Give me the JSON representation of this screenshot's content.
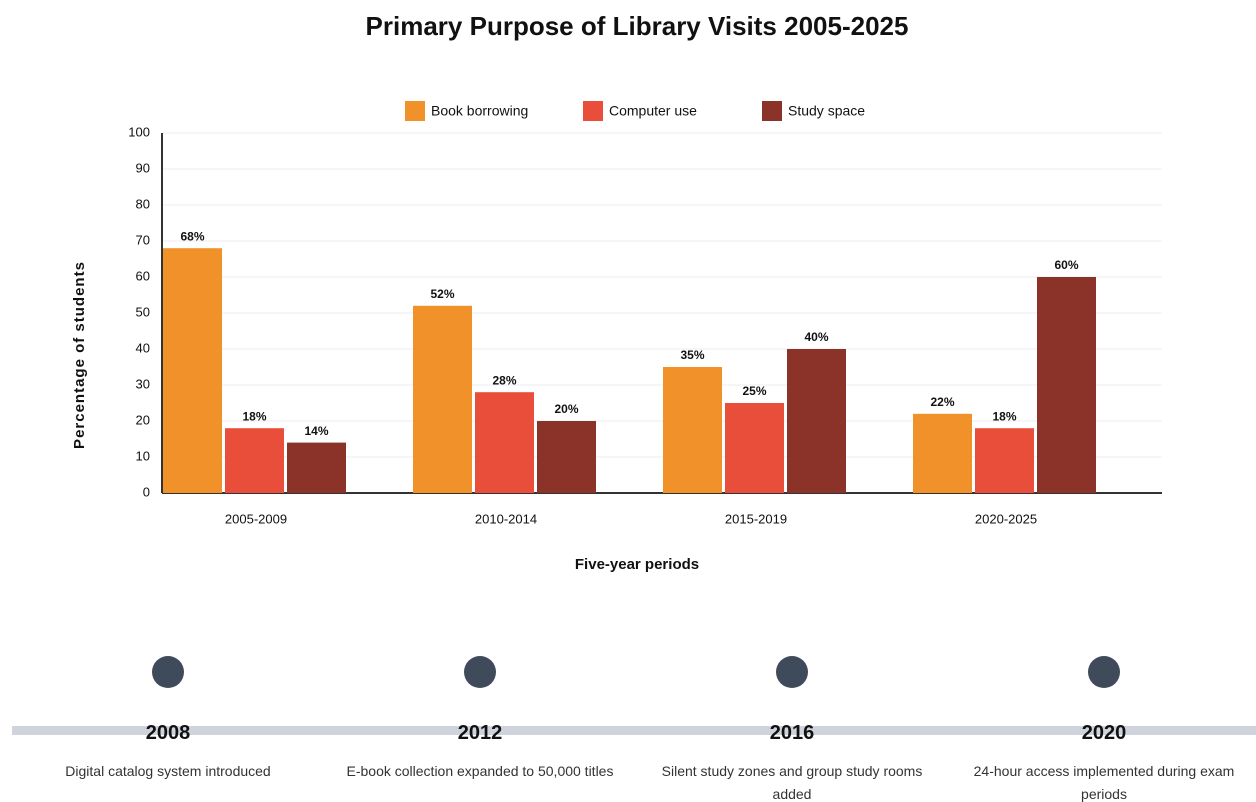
{
  "chart_data": {
    "type": "bar",
    "title": "Primary Purpose of Library Visits 2005-2025",
    "x_label": "Five-year periods",
    "y_label": "Percentage of students",
    "categories": [
      "2005-2009",
      "2010-2014",
      "2015-2019",
      "2020-2025"
    ],
    "series": [
      {
        "name": "Book borrowing",
        "color": "#f0912a",
        "values": [
          68,
          52,
          35,
          22
        ],
        "value_labels": [
          "68%",
          "52%",
          "35%",
          "22%"
        ]
      },
      {
        "name": "Computer use",
        "color": "#e84e3a",
        "values": [
          18,
          28,
          25,
          18
        ],
        "value_labels": [
          "18%",
          "28%",
          "25%",
          "18%"
        ]
      },
      {
        "name": "Study space",
        "color": "#8b3329",
        "values": [
          14,
          20,
          40,
          60
        ],
        "value_labels": [
          "14%",
          "20%",
          "40%",
          "60%"
        ]
      }
    ],
    "ylim": [
      0,
      100
    ],
    "yticks": [
      0,
      10,
      20,
      30,
      40,
      50,
      60,
      70,
      80,
      90,
      100
    ],
    "grid": true,
    "legend": "top"
  },
  "timeline": [
    {
      "year": "2008",
      "text": "Digital catalog system introduced"
    },
    {
      "year": "2012",
      "text": "E-book collection expanded to 50,000 titles"
    },
    {
      "year": "2016",
      "text": "Silent study zones and group study rooms added"
    },
    {
      "year": "2020",
      "text": "24-hour access implemented during exam periods"
    }
  ]
}
